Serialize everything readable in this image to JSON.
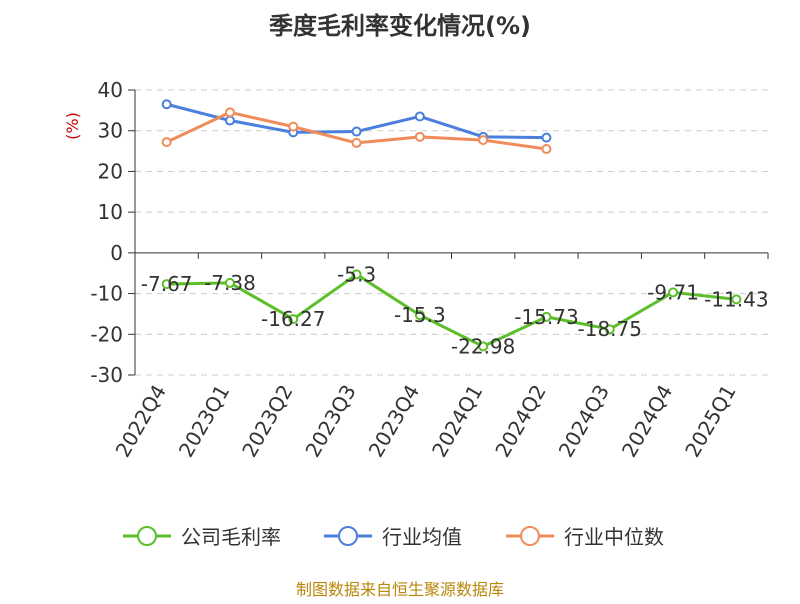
{
  "chart_data": {
    "type": "line",
    "title": "季度毛利率变化情况(%)",
    "ylabel": "(%)",
    "categories": [
      "2022Q4",
      "2023Q1",
      "2023Q2",
      "2023Q3",
      "2023Q4",
      "2024Q1",
      "2024Q2",
      "2024Q3",
      "2024Q4",
      "2025Q1"
    ],
    "ylim": [
      -30,
      40
    ],
    "yticks": [
      40,
      30,
      20,
      10,
      0,
      -10,
      -20,
      -30
    ],
    "grid": true,
    "legend_position": "bottom",
    "series": [
      {
        "name": "公司毛利率",
        "color": "#5cbf2a",
        "values": [
          -7.67,
          -7.38,
          -16.27,
          -5.3,
          -15.3,
          -22.98,
          -15.73,
          -18.75,
          -9.71,
          -11.43
        ],
        "labels": [
          "-7.67",
          "-7.38",
          "-16.27",
          "-5.3",
          "-15.3",
          "-22.98",
          "-15.73",
          "-18.75",
          "-9.71",
          "-11.43"
        ]
      },
      {
        "name": "行业均值",
        "color": "#4a7fdd",
        "values": [
          36.5,
          32.5,
          29.6,
          29.8,
          33.5,
          28.5,
          28.3,
          null,
          null,
          null
        ]
      },
      {
        "name": "行业中位数",
        "color": "#f08c5a",
        "values": [
          27.2,
          34.5,
          31.0,
          27.0,
          28.5,
          27.7,
          25.5,
          null,
          null,
          null
        ]
      }
    ],
    "source": "制图数据来自恒生聚源数据库"
  }
}
